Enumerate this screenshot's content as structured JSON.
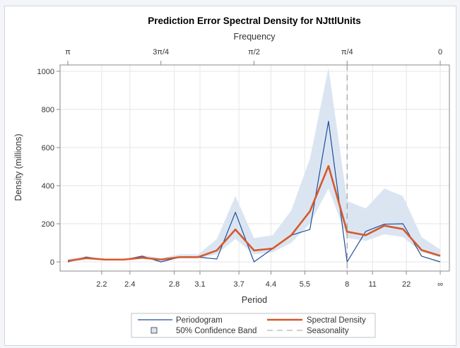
{
  "chart_data": {
    "type": "line",
    "title": "Prediction Error Spectral Density for NJttlUnits",
    "xlabel": "Period",
    "x2label": "Frequency",
    "ylabel": "Density (millions)",
    "ylim": [
      0,
      1000
    ],
    "y_ticks": [
      0,
      200,
      400,
      600,
      800,
      1000
    ],
    "frequency_range": [
      3.14159,
      0
    ],
    "frequency_ticks": [
      {
        "label": "π",
        "value": 3.14159
      },
      {
        "label": "3π/4",
        "value": 2.35619
      },
      {
        "label": "π/2",
        "value": 1.5708
      },
      {
        "label": "π/4",
        "value": 0.785398
      },
      {
        "label": "0",
        "value": 0
      }
    ],
    "period_ticks": [
      {
        "label": "2.2",
        "period": 2.2
      },
      {
        "label": "2.4",
        "period": 2.4
      },
      {
        "label": "2.8",
        "period": 2.8
      },
      {
        "label": "3.1",
        "period": 3.1
      },
      {
        "label": "3.7",
        "period": 3.7
      },
      {
        "label": "4.4",
        "period": 4.4
      },
      {
        "label": "5.5",
        "period": 5.5
      },
      {
        "label": "8",
        "period": 8
      },
      {
        "label": "11",
        "period": 11
      },
      {
        "label": "22",
        "period": 22
      },
      {
        "label": "∞",
        "period": null
      }
    ],
    "x_frequency": [
      3.14159,
      2.98451,
      2.82743,
      2.67035,
      2.51327,
      2.35619,
      2.19911,
      2.04204,
      1.88496,
      1.72788,
      1.5708,
      1.41372,
      1.25664,
      1.09956,
      0.942478,
      0.785398,
      0.628319,
      0.471239,
      0.314159,
      0.15708,
      0
    ],
    "series": [
      {
        "name": "Periodogram",
        "type": "line",
        "color": "#1f4e96",
        "values": [
          0,
          25,
          10,
          10,
          30,
          0,
          25,
          25,
          15,
          260,
          0,
          70,
          140,
          170,
          738,
          0,
          160,
          198,
          200,
          30,
          0
        ]
      },
      {
        "name": "Spectral Density",
        "type": "line",
        "color": "#d6592b",
        "values": [
          5,
          20,
          12,
          12,
          22,
          12,
          25,
          25,
          60,
          170,
          60,
          70,
          140,
          265,
          503,
          158,
          140,
          190,
          172,
          62,
          32
        ]
      },
      {
        "name": "50% Confidence Band",
        "type": "band",
        "color": "#dbe5f2",
        "upper": [
          15,
          30,
          15,
          15,
          35,
          20,
          40,
          40,
          120,
          345,
          125,
          140,
          270,
          540,
          1020,
          320,
          280,
          385,
          345,
          130,
          65
        ],
        "lower": [
          0,
          12,
          8,
          8,
          15,
          8,
          18,
          18,
          40,
          120,
          40,
          50,
          100,
          200,
          385,
          125,
          110,
          145,
          130,
          50,
          25
        ]
      }
    ],
    "reference_lines": [
      {
        "name": "Seasonality",
        "frequency": 0.785398,
        "style": "dashed",
        "color": "#a0a0a0"
      }
    ],
    "grid": true,
    "legend": {
      "placement": "bottom",
      "entries": [
        {
          "label": "Periodogram",
          "symbol": "line",
          "color": "#1f4e96"
        },
        {
          "label": "Spectral Density",
          "symbol": "thick-line",
          "color": "#d6592b"
        },
        {
          "label": "50% Confidence Band",
          "symbol": "square",
          "color": "#dbe5f2"
        },
        {
          "label": "Seasonality",
          "symbol": "dashed-line",
          "color": "#a0a0a0"
        }
      ]
    }
  }
}
